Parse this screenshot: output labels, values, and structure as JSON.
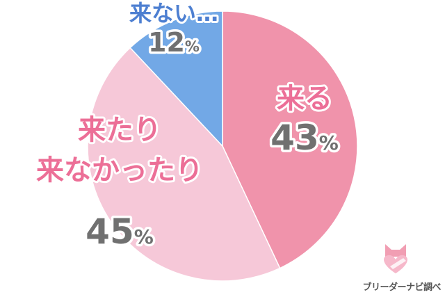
{
  "chart_data": {
    "type": "pie",
    "slices": [
      {
        "lines": [
          "来る"
        ],
        "value": 43,
        "pct": "43",
        "color": "#f093ab",
        "label_color": "#ec6f97",
        "value_color": "#707070"
      },
      {
        "lines": [
          "来たり",
          "来なかったり"
        ],
        "value": 45,
        "pct": "45",
        "color": "#f6c8d8",
        "label_color": "#ec6f97",
        "value_color": "#707070"
      },
      {
        "lines": [
          "来ない…"
        ],
        "value": 12,
        "pct": "12",
        "color": "#72a8e6",
        "label_color": "#4d7fd1",
        "value_color": "#707070"
      }
    ],
    "unit": "%",
    "start_angle_deg": 0,
    "direction": "clockwise"
  },
  "branding": {
    "text": "ブリーダーナビ調べ",
    "logo_icon": "cat-heart-icon",
    "logo_color": "#f093ab"
  }
}
